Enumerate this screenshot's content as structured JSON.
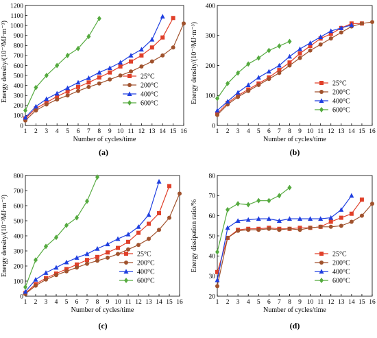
{
  "colors": {
    "25C": "#e0402a",
    "200C": "#a0522d",
    "400C": "#1f3fe0",
    "600C": "#55aa3f"
  },
  "chart_data": [
    {
      "type": "line",
      "panel_label": "(a)",
      "xlabel": "Number of cycles/time",
      "ylabel": "Energy density/(10⁻³MJ·m⁻³)",
      "xlim": [
        1,
        16
      ],
      "ylim": [
        0,
        1200
      ],
      "xticks": [
        1,
        2,
        3,
        4,
        5,
        6,
        7,
        8,
        9,
        10,
        11,
        12,
        13,
        14,
        15,
        16
      ],
      "yticks": [
        0,
        100,
        200,
        300,
        400,
        500,
        600,
        700,
        800,
        900,
        1000,
        1100,
        1200
      ],
      "legend": "right",
      "series": [
        {
          "name": "25°C",
          "color": "#e0402a",
          "marker": "square",
          "x": [
            1,
            2,
            3,
            4,
            5,
            6,
            7,
            8,
            9,
            10,
            11,
            12,
            13,
            14,
            15
          ],
          "values": [
            70,
            170,
            230,
            290,
            340,
            385,
            430,
            480,
            530,
            590,
            640,
            700,
            780,
            880,
            1075
          ]
        },
        {
          "name": "200°C",
          "color": "#a0522d",
          "marker": "circle",
          "x": [
            1,
            2,
            3,
            4,
            5,
            6,
            7,
            8,
            9,
            10,
            11,
            12,
            13,
            14,
            15,
            16
          ],
          "values": [
            50,
            150,
            210,
            260,
            300,
            345,
            385,
            420,
            460,
            500,
            540,
            590,
            640,
            700,
            780,
            1020
          ]
        },
        {
          "name": "400°C",
          "color": "#1f3fe0",
          "marker": "triangle",
          "x": [
            1,
            2,
            3,
            4,
            5,
            6,
            7,
            8,
            9,
            10,
            11,
            12,
            13,
            14
          ],
          "values": [
            80,
            190,
            265,
            320,
            375,
            430,
            475,
            530,
            575,
            630,
            700,
            760,
            860,
            1090
          ]
        },
        {
          "name": "600°C",
          "color": "#55aa3f",
          "marker": "diamond",
          "x": [
            1,
            2,
            3,
            4,
            5,
            6,
            7,
            8
          ],
          "values": [
            150,
            380,
            500,
            600,
            700,
            770,
            890,
            1070
          ]
        }
      ]
    },
    {
      "type": "line",
      "panel_label": "(b)",
      "xlabel": "Number of cycles/time",
      "ylabel": "Energy density/(10⁻³MJ·m⁻³)",
      "xlim": [
        1,
        16
      ],
      "ylim": [
        0,
        400
      ],
      "xticks": [
        1,
        2,
        3,
        4,
        5,
        6,
        7,
        8,
        9,
        10,
        11,
        12,
        13,
        14,
        15,
        16
      ],
      "yticks": [
        0,
        100,
        200,
        300,
        400
      ],
      "legend": "right",
      "series": [
        {
          "name": "25°C",
          "color": "#e0402a",
          "marker": "square",
          "x": [
            1,
            2,
            3,
            4,
            5,
            6,
            7,
            8,
            9,
            10,
            11,
            12,
            13,
            14,
            15
          ],
          "values": [
            40,
            75,
            100,
            120,
            140,
            160,
            185,
            210,
            240,
            265,
            290,
            305,
            325,
            340,
            340
          ]
        },
        {
          "name": "200°C",
          "color": "#a0522d",
          "marker": "circle",
          "x": [
            1,
            2,
            3,
            4,
            5,
            6,
            7,
            8,
            9,
            10,
            11,
            12,
            13,
            14,
            15,
            16
          ],
          "values": [
            35,
            70,
            95,
            115,
            135,
            155,
            175,
            200,
            225,
            250,
            270,
            290,
            310,
            330,
            340,
            345
          ]
        },
        {
          "name": "400°C",
          "color": "#1f3fe0",
          "marker": "triangle",
          "x": [
            1,
            2,
            3,
            4,
            5,
            6,
            7,
            8,
            9,
            10,
            11,
            12,
            13,
            14
          ],
          "values": [
            50,
            80,
            110,
            135,
            160,
            180,
            200,
            230,
            255,
            275,
            295,
            315,
            325,
            335
          ]
        },
        {
          "name": "600°C",
          "color": "#55aa3f",
          "marker": "diamond",
          "x": [
            1,
            2,
            3,
            4,
            5,
            6,
            7,
            8
          ],
          "values": [
            90,
            140,
            175,
            205,
            225,
            250,
            265,
            280
          ]
        }
      ]
    },
    {
      "type": "line",
      "panel_label": "(c)",
      "xlabel": "Number of cycles/time",
      "ylabel": "Energy density/(10⁻³MJ·m⁻³)",
      "xlim": [
        1,
        16
      ],
      "ylim": [
        0,
        800
      ],
      "xticks": [
        1,
        2,
        3,
        4,
        5,
        6,
        7,
        8,
        9,
        10,
        11,
        12,
        13,
        14,
        15,
        16
      ],
      "yticks": [
        0,
        100,
        200,
        300,
        400,
        500,
        600,
        700,
        800
      ],
      "legend": "right",
      "series": [
        {
          "name": "25°C",
          "color": "#e0402a",
          "marker": "square",
          "x": [
            1,
            2,
            3,
            4,
            5,
            6,
            7,
            8,
            9,
            10,
            11,
            12,
            13,
            14,
            15
          ],
          "values": [
            20,
            80,
            120,
            150,
            180,
            210,
            240,
            260,
            290,
            320,
            360,
            420,
            480,
            550,
            730
          ]
        },
        {
          "name": "200°C",
          "color": "#a0522d",
          "marker": "circle",
          "x": [
            1,
            2,
            3,
            4,
            5,
            6,
            7,
            8,
            9,
            10,
            11,
            12,
            13,
            14,
            15,
            16
          ],
          "values": [
            15,
            70,
            110,
            140,
            165,
            190,
            215,
            235,
            255,
            280,
            310,
            340,
            380,
            440,
            520,
            680
          ]
        },
        {
          "name": "400°C",
          "color": "#1f3fe0",
          "marker": "triangle",
          "x": [
            1,
            2,
            3,
            4,
            5,
            6,
            7,
            8,
            9,
            10,
            11,
            12,
            13,
            14
          ],
          "values": [
            30,
            110,
            155,
            190,
            225,
            255,
            280,
            315,
            345,
            380,
            410,
            460,
            540,
            760
          ]
        },
        {
          "name": "600°C",
          "color": "#55aa3f",
          "marker": "diamond",
          "x": [
            1,
            2,
            3,
            4,
            5,
            6,
            7,
            8
          ],
          "values": [
            60,
            240,
            330,
            390,
            470,
            520,
            630,
            790
          ]
        }
      ]
    },
    {
      "type": "line",
      "panel_label": "(d)",
      "xlabel": "Number of cycles/time",
      "ylabel": "Energy dissipation ratio/%",
      "xlim": [
        1,
        16
      ],
      "ylim": [
        20,
        80
      ],
      "xticks": [
        1,
        2,
        3,
        4,
        5,
        6,
        7,
        8,
        9,
        10,
        11,
        12,
        13,
        14,
        15,
        16
      ],
      "yticks": [
        20,
        30,
        40,
        50,
        60,
        70,
        80
      ],
      "legend": "right",
      "series": [
        {
          "name": "25°C",
          "color": "#e0402a",
          "marker": "square",
          "x": [
            1,
            2,
            3,
            4,
            5,
            6,
            7,
            8,
            9,
            10,
            11,
            12,
            13,
            14,
            15
          ],
          "values": [
            32,
            49,
            53,
            53.5,
            53.5,
            54,
            53.5,
            53.5,
            54,
            54,
            54.5,
            57,
            59,
            61,
            68
          ]
        },
        {
          "name": "200°C",
          "color": "#a0522d",
          "marker": "circle",
          "x": [
            1,
            2,
            3,
            4,
            5,
            6,
            7,
            8,
            9,
            10,
            11,
            12,
            13,
            14,
            15,
            16
          ],
          "values": [
            25,
            49,
            52.5,
            53,
            53,
            53.5,
            53,
            53.5,
            53,
            54,
            54.5,
            54.5,
            55,
            57,
            60,
            66
          ]
        },
        {
          "name": "400°C",
          "color": "#1f3fe0",
          "marker": "triangle",
          "x": [
            1,
            2,
            3,
            4,
            5,
            6,
            7,
            8,
            9,
            10,
            11,
            12,
            13,
            14
          ],
          "values": [
            28,
            54,
            57.5,
            58,
            58.5,
            58.5,
            57.5,
            58.5,
            58.5,
            58.5,
            58.5,
            59,
            63,
            70
          ]
        },
        {
          "name": "600°C",
          "color": "#55aa3f",
          "marker": "diamond",
          "x": [
            1,
            2,
            3,
            4,
            5,
            6,
            7,
            8
          ],
          "values": [
            42,
            63,
            66,
            65.5,
            67.5,
            67.5,
            70,
            74
          ]
        }
      ]
    }
  ]
}
